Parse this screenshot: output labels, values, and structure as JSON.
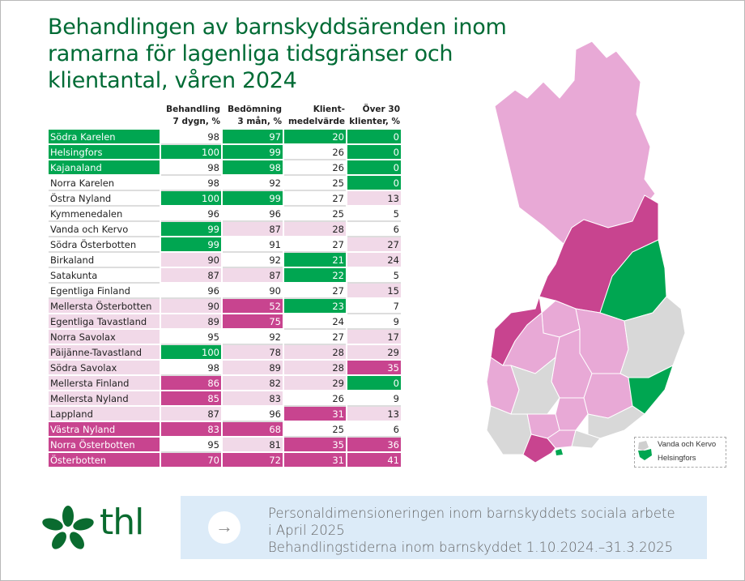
{
  "title": "Behandlingen av barnskyddsärenden inom ramarna för lagenliga tidsgränser och klientantal, våren 2024",
  "columns": [
    "Behandling 7 dygn, %",
    "Bedömning 3 mån, %",
    "Klient-medelvärde",
    "Över 30 klienter, %"
  ],
  "colors": {
    "green": "#00a651",
    "magenta": "#c8448f",
    "light_pink": "#f1d9e8",
    "white": "#ffffff",
    "title": "#006b35"
  },
  "rows": [
    {
      "name": "Södra Karelen",
      "level": "g",
      "values": [
        "98",
        "97",
        "20",
        "0"
      ],
      "levels": [
        "w",
        "g",
        "g",
        "g"
      ]
    },
    {
      "name": "Helsingfors",
      "level": "g",
      "values": [
        "100",
        "99",
        "26",
        "0"
      ],
      "levels": [
        "g",
        "g",
        "w",
        "g"
      ]
    },
    {
      "name": "Kajanaland",
      "level": "g",
      "values": [
        "98",
        "98",
        "26",
        "0"
      ],
      "levels": [
        "w",
        "g",
        "w",
        "g"
      ]
    },
    {
      "name": "Norra Karelen",
      "level": "w",
      "values": [
        "98",
        "92",
        "25",
        "0"
      ],
      "levels": [
        "w",
        "w",
        "w",
        "g"
      ]
    },
    {
      "name": "Östra Nyland",
      "level": "w",
      "values": [
        "100",
        "99",
        "27",
        "13"
      ],
      "levels": [
        "g",
        "g",
        "w",
        "p"
      ]
    },
    {
      "name": "Kymmenedalen",
      "level": "w",
      "values": [
        "96",
        "96",
        "25",
        "5"
      ],
      "levels": [
        "w",
        "w",
        "w",
        "w"
      ]
    },
    {
      "name": "Vanda och Kervo",
      "level": "w",
      "values": [
        "99",
        "87",
        "28",
        "6"
      ],
      "levels": [
        "g",
        "p",
        "p",
        "w"
      ]
    },
    {
      "name": "Södra Österbotten",
      "level": "w",
      "values": [
        "99",
        "91",
        "27",
        "27"
      ],
      "levels": [
        "g",
        "w",
        "w",
        "p"
      ]
    },
    {
      "name": "Birkaland",
      "level": "w",
      "values": [
        "90",
        "92",
        "21",
        "24"
      ],
      "levels": [
        "p",
        "w",
        "g",
        "p"
      ]
    },
    {
      "name": "Satakunta",
      "level": "w",
      "values": [
        "87",
        "87",
        "22",
        "5"
      ],
      "levels": [
        "p",
        "p",
        "g",
        "w"
      ]
    },
    {
      "name": "Egentliga Finland",
      "level": "w",
      "values": [
        "96",
        "90",
        "27",
        "15"
      ],
      "levels": [
        "w",
        "w",
        "w",
        "p"
      ]
    },
    {
      "name": "Mellersta Österbotten",
      "level": "p",
      "values": [
        "90",
        "52",
        "23",
        "7"
      ],
      "levels": [
        "p",
        "m",
        "g",
        "w"
      ]
    },
    {
      "name": "Egentliga Tavastland",
      "level": "p",
      "values": [
        "89",
        "75",
        "24",
        "9"
      ],
      "levels": [
        "p",
        "m",
        "w",
        "w"
      ]
    },
    {
      "name": "Norra Savolax",
      "level": "p",
      "values": [
        "95",
        "92",
        "27",
        "17"
      ],
      "levels": [
        "w",
        "w",
        "w",
        "p"
      ]
    },
    {
      "name": "Päijänne-Tavastland",
      "level": "p",
      "values": [
        "100",
        "78",
        "28",
        "29"
      ],
      "levels": [
        "g",
        "p",
        "p",
        "p"
      ]
    },
    {
      "name": "Södra Savolax",
      "level": "p",
      "values": [
        "98",
        "89",
        "28",
        "35"
      ],
      "levels": [
        "w",
        "p",
        "p",
        "m"
      ]
    },
    {
      "name": "Mellersta Finland",
      "level": "p",
      "values": [
        "86",
        "82",
        "29",
        "0"
      ],
      "levels": [
        "m",
        "p",
        "p",
        "g"
      ]
    },
    {
      "name": "Mellersta Nyland",
      "level": "p",
      "values": [
        "85",
        "83",
        "26",
        "9"
      ],
      "levels": [
        "m",
        "p",
        "w",
        "w"
      ]
    },
    {
      "name": "Lappland",
      "level": "p",
      "values": [
        "87",
        "96",
        "31",
        "13"
      ],
      "levels": [
        "p",
        "w",
        "m",
        "p"
      ]
    },
    {
      "name": "Västra Nyland",
      "level": "m",
      "values": [
        "83",
        "68",
        "25",
        "6"
      ],
      "levels": [
        "m",
        "m",
        "w",
        "w"
      ]
    },
    {
      "name": "Norra Österbotten",
      "level": "m",
      "values": [
        "95",
        "81",
        "35",
        "36"
      ],
      "levels": [
        "w",
        "p",
        "m",
        "m"
      ]
    },
    {
      "name": "Österbotten",
      "level": "m",
      "values": [
        "70",
        "72",
        "31",
        "41"
      ],
      "levels": [
        "m",
        "m",
        "m",
        "m"
      ]
    }
  ],
  "map": {
    "inset_labels": [
      "Vanda och Kervo",
      "Helsingfors"
    ]
  },
  "footer": {
    "links": [
      "Personaldimensioneringen inom barnskyddets sociala arbete",
      "i April 2025",
      "Behandlingstiderna inom barnskyddet 1.10.2024.–31.3.2025"
    ],
    "arrow_icon": "arrow-right-icon",
    "logo_text": "thl"
  }
}
